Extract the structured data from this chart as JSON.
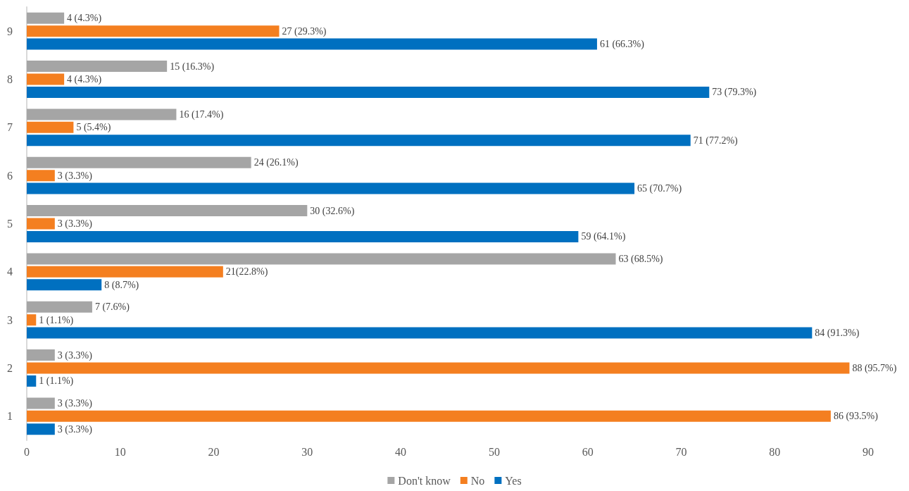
{
  "chart_data": {
    "type": "bar",
    "orientation": "horizontal",
    "categories": [
      "9",
      "8",
      "7",
      "6",
      "5",
      "4",
      "3",
      "2",
      "1"
    ],
    "series": [
      {
        "name": "Don't know",
        "color": "#a5a5a5",
        "values": [
          4,
          15,
          16,
          24,
          30,
          63,
          7,
          3,
          3
        ],
        "value_labels": [
          "4 (4.3%)",
          "15 (16.3%)",
          "16 (17.4%)",
          "24 (26.1%)",
          "30 (32.6%)",
          "63 (68.5%)",
          "7 (7.6%)",
          "3 (3.3%)",
          "3 (3.3%)"
        ]
      },
      {
        "name": "No",
        "color": "#f47f20",
        "values": [
          27,
          4,
          5,
          3,
          3,
          21,
          1,
          88,
          86
        ],
        "value_labels": [
          "27 (29.3%)",
          "4 (4.3%)",
          "5 (5.4%)",
          "3 (3.3%)",
          "3 (3.3%)",
          "21(22.8%)",
          "1 (1.1%)",
          "88 (95.7%)",
          "86 (93.5%)"
        ]
      },
      {
        "name": "Yes",
        "color": "#0070c0",
        "values": [
          61,
          73,
          71,
          65,
          59,
          8,
          84,
          1,
          3
        ],
        "value_labels": [
          "61 (66.3%)",
          "73 (79.3%)",
          "71 (77.2%)",
          "65 (70.7%)",
          "59 (64.1%)",
          "8 (8.7%)",
          "84 (91.3%)",
          "1 (1.1%)",
          "3 (3.3%)"
        ]
      }
    ],
    "xlim": [
      0,
      90
    ],
    "xticks": [
      0,
      10,
      20,
      30,
      40,
      50,
      60,
      70,
      80,
      90
    ],
    "grid": false,
    "legend": "bottom"
  }
}
